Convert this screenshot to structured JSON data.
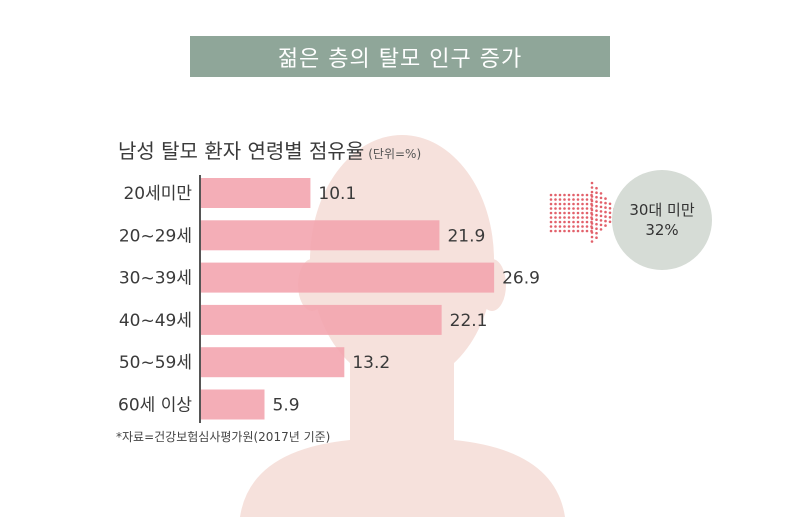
{
  "banner": {
    "title": "젊은 층의 탈모 인구 증가"
  },
  "subtitle": {
    "text": "남성 탈모 환자 연령별 점유율",
    "unit": "(단위=%)"
  },
  "source": "*자료=건강보험심사평가원(2017년 기준)",
  "callout": {
    "line1": "30대 미만",
    "line2": "32%"
  },
  "colors": {
    "banner_bg": "#8fa699",
    "bar": "#f2a3ad",
    "arrow_dots": "#e2616b",
    "callout_bg": "#d6dcd6",
    "face": "#f6e1dc"
  },
  "chart_data": {
    "type": "bar",
    "orientation": "horizontal",
    "categories": [
      "20세미만",
      "20~29세",
      "30~39세",
      "40~49세",
      "50~59세",
      "60세 이상"
    ],
    "values": [
      10.1,
      21.9,
      26.9,
      22.1,
      13.2,
      5.9
    ],
    "value_labels": [
      "10.1",
      "21.9",
      "26.9",
      "22.1",
      "13.2",
      "5.9"
    ],
    "title": "남성 탈모 환자 연령별 점유율",
    "unit": "%",
    "xlim": [
      0,
      30
    ]
  }
}
